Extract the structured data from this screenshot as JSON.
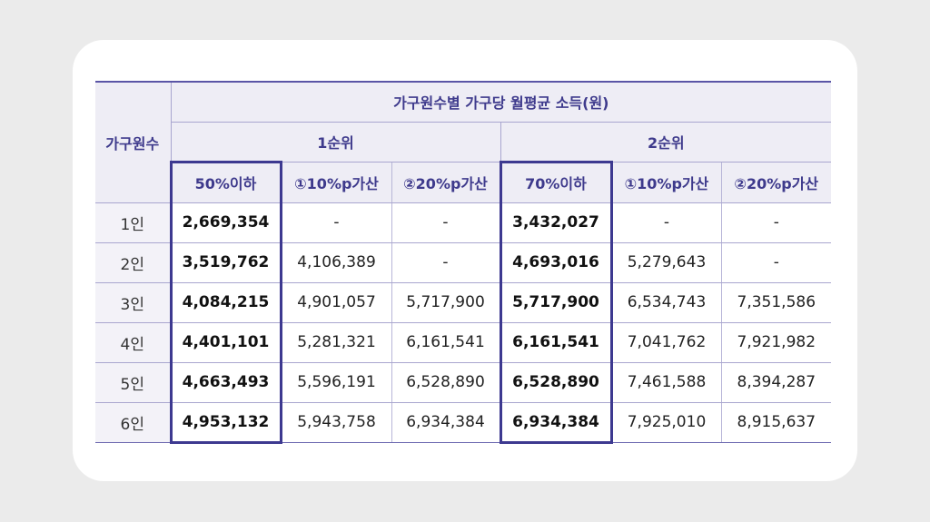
{
  "table": {
    "title": "가구원수별 가구당 월평균 소득(원)",
    "corner_label": "가구원수",
    "groups": [
      "1순위",
      "2순위"
    ],
    "columns": [
      "50%이하",
      "①10%p가산",
      "②20%p가산",
      "70%이하",
      "①10%p가산",
      "②20%p가산"
    ],
    "rows": [
      {
        "label": "1인",
        "cells": [
          "2,669,354",
          "-",
          "-",
          "3,432,027",
          "-",
          "-"
        ]
      },
      {
        "label": "2인",
        "cells": [
          "3,519,762",
          "4,106,389",
          "-",
          "4,693,016",
          "5,279,643",
          "-"
        ]
      },
      {
        "label": "3인",
        "cells": [
          "4,084,215",
          "4,901,057",
          "5,717,900",
          "5,717,900",
          "6,534,743",
          "7,351,586"
        ]
      },
      {
        "label": "4인",
        "cells": [
          "4,401,101",
          "5,281,321",
          "6,161,541",
          "6,161,541",
          "7,041,762",
          "7,921,982"
        ]
      },
      {
        "label": "5인",
        "cells": [
          "4,663,493",
          "5,596,191",
          "6,528,890",
          "6,528,890",
          "7,461,588",
          "8,394,287"
        ]
      },
      {
        "label": "6인",
        "cells": [
          "4,953,132",
          "5,943,758",
          "6,934,384",
          "6,934,384",
          "7,925,010",
          "8,915,637"
        ]
      }
    ]
  }
}
